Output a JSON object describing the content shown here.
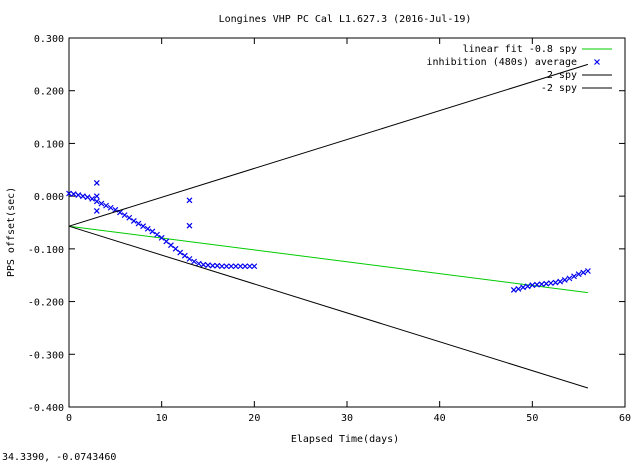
{
  "chart_data": {
    "type": "line",
    "title": "Longines VHP PC Cal L1.627.3 (2016-Jul-19)",
    "xlabel": "Elapsed Time(days)",
    "ylabel": "PPS offset(sec)",
    "xlim": [
      0,
      60
    ],
    "ylim": [
      -0.4,
      0.3
    ],
    "xticks": [
      "0",
      "10",
      "20",
      "30",
      "40",
      "50",
      "60"
    ],
    "yticks": [
      "0.300",
      "0.200",
      "0.100",
      "0.000",
      "-0.100",
      "-0.200",
      "-0.300",
      "-0.400"
    ],
    "grid": false,
    "legend_position": "top-right",
    "series": [
      {
        "name": "linear fit -0.8 spy",
        "kind": "line",
        "color": "#00cc00",
        "points": [
          [
            0,
            -0.057
          ],
          [
            56,
            -0.183
          ]
        ]
      },
      {
        "name": "inhibition (480s) average",
        "kind": "scatter",
        "marker": "x",
        "color": "#0000ee",
        "points": [
          [
            0.0,
            0.005
          ],
          [
            0.5,
            0.004
          ],
          [
            1.0,
            0.002
          ],
          [
            1.5,
            0.0
          ],
          [
            2.0,
            -0.002
          ],
          [
            2.5,
            -0.005
          ],
          [
            3.0,
            -0.01
          ],
          [
            3.5,
            -0.014
          ],
          [
            4.0,
            -0.018
          ],
          [
            4.5,
            -0.022
          ],
          [
            5.0,
            -0.026
          ],
          [
            5.5,
            -0.031
          ],
          [
            6.0,
            -0.036
          ],
          [
            6.5,
            -0.041
          ],
          [
            7.0,
            -0.047
          ],
          [
            7.5,
            -0.052
          ],
          [
            8.0,
            -0.057
          ],
          [
            8.5,
            -0.062
          ],
          [
            9.0,
            -0.067
          ],
          [
            9.5,
            -0.073
          ],
          [
            10.0,
            -0.079
          ],
          [
            10.5,
            -0.086
          ],
          [
            11.0,
            -0.093
          ],
          [
            11.5,
            -0.1
          ],
          [
            12.0,
            -0.107
          ],
          [
            12.5,
            -0.113
          ],
          [
            13.0,
            -0.119
          ],
          [
            13.5,
            -0.124
          ],
          [
            14.0,
            -0.128
          ],
          [
            14.5,
            -0.13
          ],
          [
            15.0,
            -0.131
          ],
          [
            15.5,
            -0.132
          ],
          [
            16.0,
            -0.132
          ],
          [
            16.5,
            -0.133
          ],
          [
            17.0,
            -0.133
          ],
          [
            17.5,
            -0.133
          ],
          [
            18.0,
            -0.133
          ],
          [
            18.5,
            -0.133
          ],
          [
            19.0,
            -0.133
          ],
          [
            19.5,
            -0.133
          ],
          [
            20.0,
            -0.133
          ],
          [
            3.0,
            0.025
          ],
          [
            3.0,
            0.0
          ],
          [
            3.0,
            -0.028
          ],
          [
            13.0,
            -0.008
          ],
          [
            13.0,
            -0.056
          ],
          [
            48.0,
            -0.178
          ],
          [
            48.5,
            -0.176
          ],
          [
            49.0,
            -0.173
          ],
          [
            49.5,
            -0.171
          ],
          [
            50.0,
            -0.169
          ],
          [
            50.5,
            -0.168
          ],
          [
            51.0,
            -0.167
          ],
          [
            51.5,
            -0.166
          ],
          [
            52.0,
            -0.165
          ],
          [
            52.5,
            -0.164
          ],
          [
            53.0,
            -0.162
          ],
          [
            53.5,
            -0.159
          ],
          [
            54.0,
            -0.156
          ],
          [
            54.5,
            -0.152
          ],
          [
            55.0,
            -0.148
          ],
          [
            55.5,
            -0.145
          ],
          [
            56.0,
            -0.142
          ]
        ]
      },
      {
        "name": "2 spy",
        "kind": "line",
        "color": "#000000",
        "points": [
          [
            0,
            -0.057
          ],
          [
            56,
            0.25
          ]
        ]
      },
      {
        "name": "-2 spy",
        "kind": "line",
        "color": "#000000",
        "points": [
          [
            0,
            -0.057
          ],
          [
            56,
            -0.364
          ]
        ]
      }
    ]
  },
  "status_readout": "34.3390, -0.0743460"
}
